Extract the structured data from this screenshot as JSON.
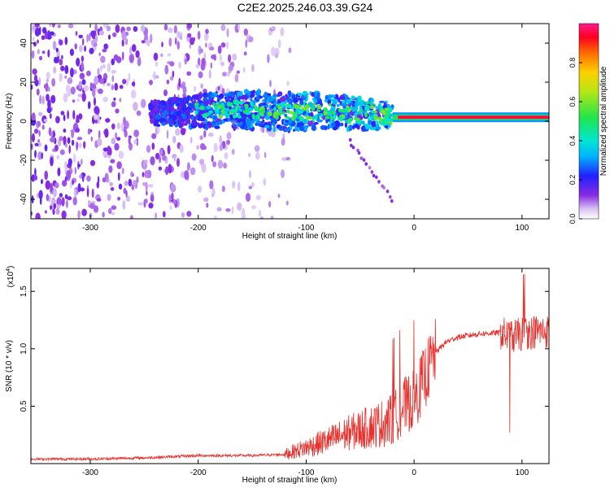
{
  "title": "C2E2.2025.246.03.39.G24",
  "chart_data": [
    {
      "type": "heatmap",
      "xlabel": "Height of straight line (km)",
      "ylabel": "Frequency (Hz)",
      "xlim": [
        -355,
        125
      ],
      "ylim": [
        -50,
        50
      ],
      "xticks": [
        -300,
        -200,
        -100,
        0,
        100
      ],
      "yticks": [
        -40,
        -20,
        0,
        20,
        40
      ],
      "colorbar": {
        "label": "Normalized spectral amplitude",
        "range": [
          0,
          1
        ],
        "ticks": [
          0.0,
          0.2,
          0.4,
          0.6,
          0.8
        ],
        "tick_labels": [
          "0.0",
          "0.2",
          "0.4",
          "0.6",
          "0.8"
        ],
        "colormap": "white-purple-blue-cyan-green-yellow-red-magenta"
      },
      "features": {
        "noise_region_x": [
          -355,
          -115
        ],
        "broadband_band_x": [
          -245,
          -20
        ],
        "broadband_band_center_hz": [
          4,
          6,
          5,
          3
        ],
        "secondary_trace": {
          "x": [
            -60,
            -20
          ],
          "y": [
            -10,
            -40
          ]
        },
        "carrier_line": {
          "x": [
            -20,
            125
          ],
          "frequency_hz": 2,
          "amplitude": 0.95
        }
      }
    },
    {
      "type": "line",
      "xlabel": "Height of straight line (km)",
      "ylabel": "SNR (10 * v/v)",
      "scale_label": "(x10",
      "scale_exponent": "4",
      "xlim": [
        -355,
        125
      ],
      "ylim": [
        0,
        1.7
      ],
      "xticks": [
        -300,
        -200,
        -100,
        0,
        100
      ],
      "yticks": [
        0.5,
        1.0,
        1.5
      ],
      "ytick_labels": [
        "0.5",
        "1.0",
        "1.5"
      ],
      "color": "#e8302c",
      "series": [
        {
          "x": [
            -355,
            -300,
            -250,
            -200,
            -150,
            -120,
            -100,
            -80,
            -60,
            -40,
            -20,
            -10,
            0,
            10,
            20,
            30,
            40,
            60,
            80,
            90,
            100,
            110,
            125
          ],
          "y": [
            0.04,
            0.04,
            0.05,
            0.07,
            0.07,
            0.08,
            0.14,
            0.2,
            0.27,
            0.32,
            0.38,
            0.5,
            0.55,
            0.75,
            0.97,
            1.06,
            1.1,
            1.13,
            1.14,
            1.1,
            1.13,
            1.15,
            1.15
          ]
        }
      ]
    }
  ]
}
